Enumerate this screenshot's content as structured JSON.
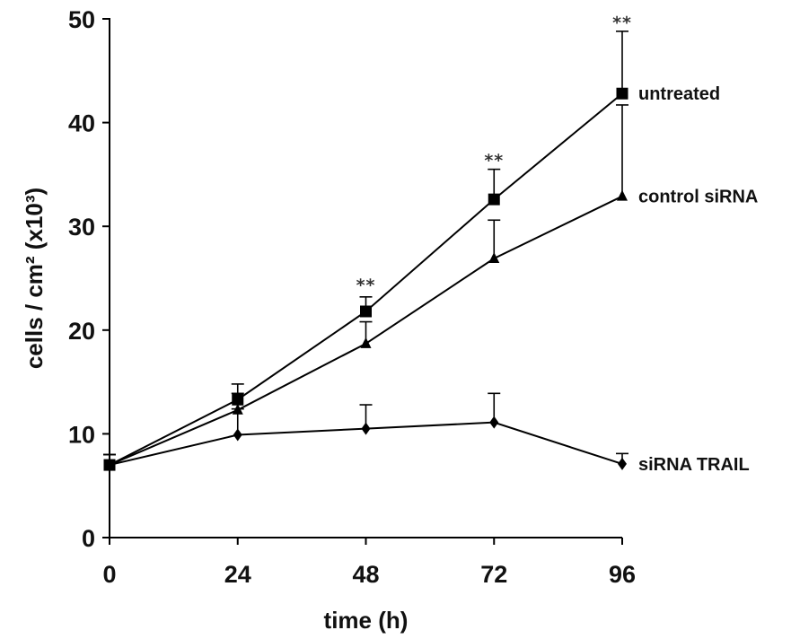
{
  "chart_data": {
    "type": "line",
    "xlabel": "time (h)",
    "ylabel": "cells / cm² (x10³)",
    "x": [
      0,
      24,
      48,
      72,
      96
    ],
    "xticks": [
      "0",
      "24",
      "48",
      "72",
      "96"
    ],
    "yticks": [
      "0",
      "10",
      "20",
      "30",
      "40",
      "50"
    ],
    "xlim": [
      0,
      96
    ],
    "ylim": [
      0,
      50
    ],
    "grid": false,
    "series": [
      {
        "name": "untreated",
        "marker": "square",
        "values": [
          7,
          13.3,
          21.8,
          32.6,
          42.8
        ],
        "error": [
          1.0,
          1.5,
          1.4,
          2.9,
          6.0
        ]
      },
      {
        "name": "control siRNA",
        "marker": "triangle",
        "values": [
          7,
          12.3,
          18.7,
          26.9,
          32.9
        ],
        "error": [
          1.0,
          1.6,
          2.1,
          3.7,
          8.8
        ]
      },
      {
        "name": "siRNA TRAIL",
        "marker": "diamond",
        "values": [
          7,
          9.9,
          10.5,
          11.1,
          7.1
        ],
        "error": [
          1.0,
          2.5,
          2.3,
          2.8,
          1.0
        ]
      }
    ],
    "annotations": [
      {
        "text": "**",
        "x": 48,
        "y": 24.5
      },
      {
        "text": "**",
        "x": 72,
        "y": 36.5
      },
      {
        "text": "**",
        "x": 96,
        "y": 49.8
      }
    ]
  }
}
